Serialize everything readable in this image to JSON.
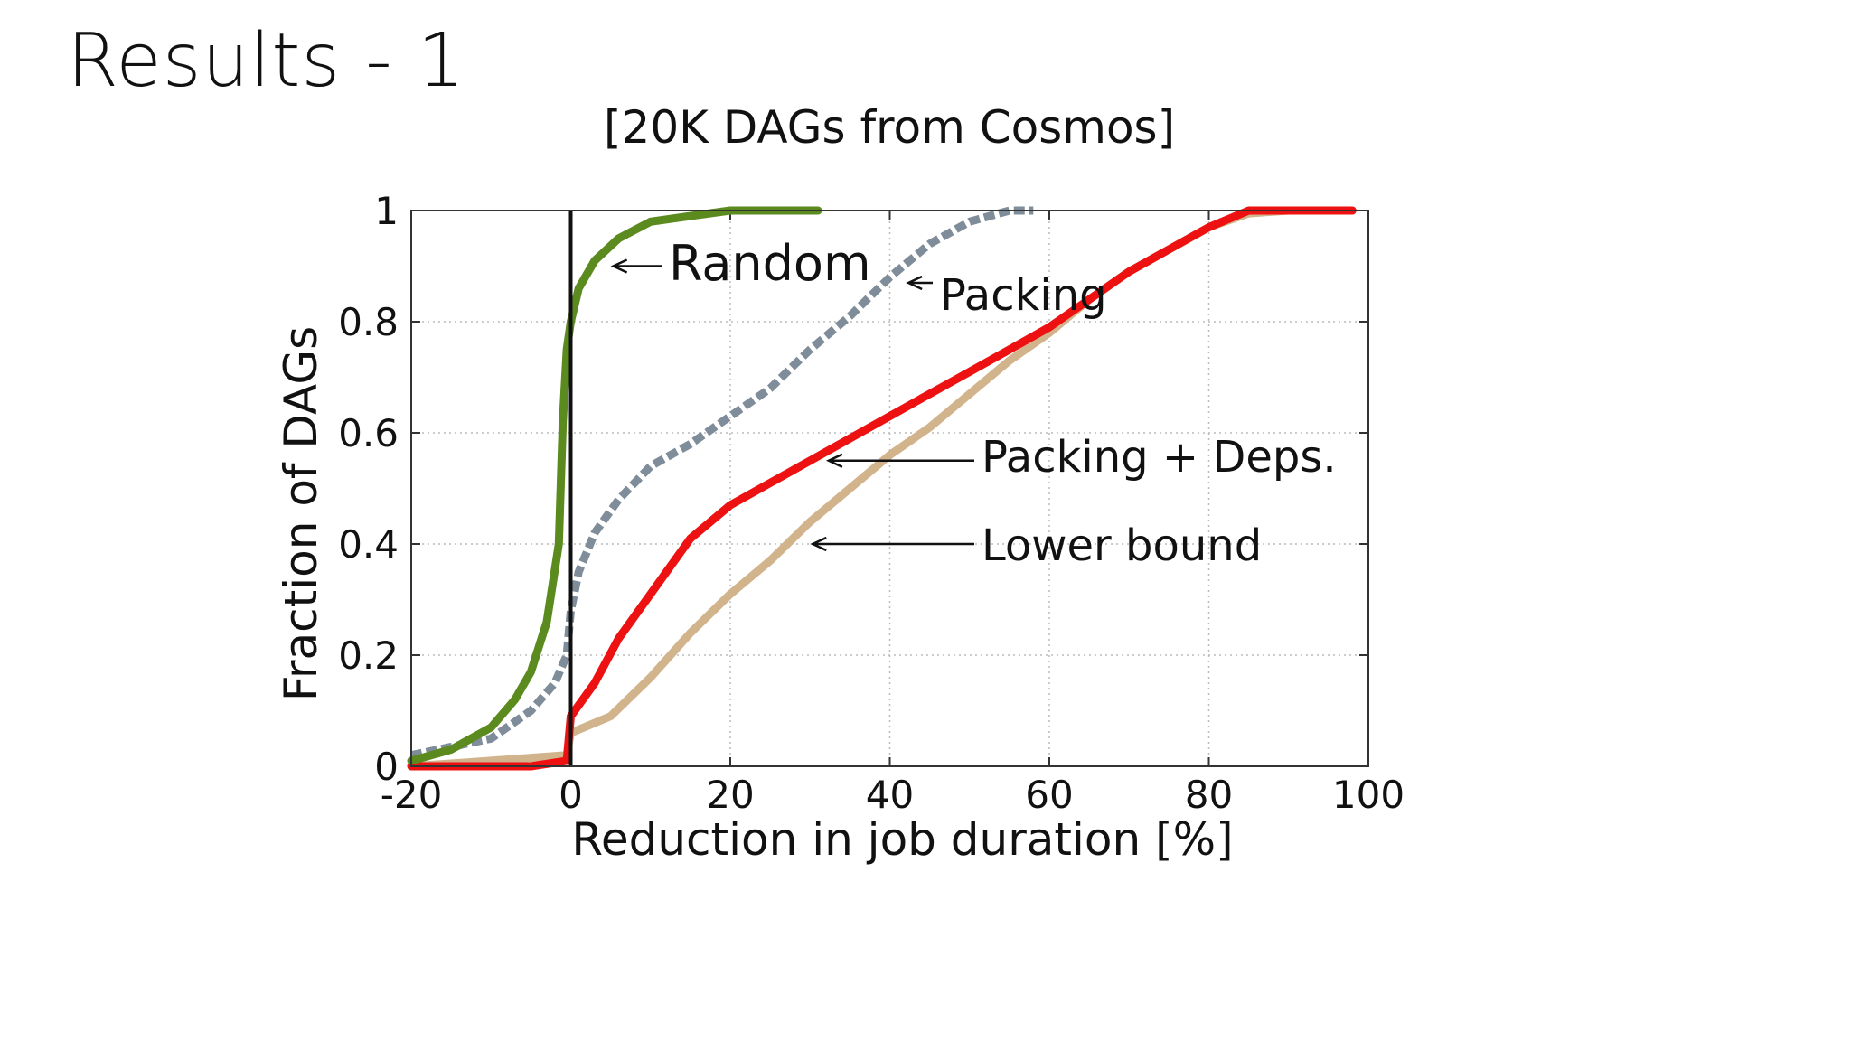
{
  "slide": {
    "title": "Results - 1",
    "subtitle": "[20K DAGs from Cosmos]"
  },
  "chart_data": {
    "type": "line",
    "xlabel": "Reduction in job duration [%]",
    "ylabel": "Fraction of DAGs",
    "xlim": [
      -20,
      100
    ],
    "ylim": [
      0,
      1
    ],
    "xticks": [
      "-20",
      "0",
      "20",
      "40",
      "60",
      "80",
      "100"
    ],
    "yticks": [
      "0",
      "0.2",
      "0.4",
      "0.6",
      "0.8",
      "1"
    ],
    "grid": true,
    "reference_line_x": 0,
    "series": [
      {
        "name": "Random",
        "color": "#5b8a1e",
        "dash": false,
        "points": [
          [
            -20,
            0.01
          ],
          [
            -15,
            0.03
          ],
          [
            -10,
            0.07
          ],
          [
            -7,
            0.12
          ],
          [
            -5,
            0.17
          ],
          [
            -3,
            0.26
          ],
          [
            -1.5,
            0.4
          ],
          [
            -1,
            0.62
          ],
          [
            -0.5,
            0.75
          ],
          [
            0,
            0.8
          ],
          [
            1,
            0.86
          ],
          [
            3,
            0.91
          ],
          [
            6,
            0.95
          ],
          [
            10,
            0.98
          ],
          [
            15,
            0.99
          ],
          [
            20,
            1.0
          ],
          [
            31,
            1.0
          ]
        ]
      },
      {
        "name": "Packing",
        "color": "#7f8c99",
        "dash": true,
        "points": [
          [
            -20,
            0.02
          ],
          [
            -10,
            0.05
          ],
          [
            -5,
            0.1
          ],
          [
            -2,
            0.15
          ],
          [
            -0.5,
            0.2
          ],
          [
            0,
            0.28
          ],
          [
            1,
            0.35
          ],
          [
            3,
            0.42
          ],
          [
            6,
            0.48
          ],
          [
            10,
            0.54
          ],
          [
            15,
            0.58
          ],
          [
            20,
            0.63
          ],
          [
            25,
            0.68
          ],
          [
            30,
            0.75
          ],
          [
            35,
            0.81
          ],
          [
            40,
            0.88
          ],
          [
            45,
            0.94
          ],
          [
            50,
            0.98
          ],
          [
            55,
            1.0
          ],
          [
            58,
            1.0
          ]
        ]
      },
      {
        "name": "Packing + Deps.",
        "color": "#ee1111",
        "dash": false,
        "points": [
          [
            -20,
            0.0
          ],
          [
            -5,
            0.0
          ],
          [
            -0.5,
            0.01
          ],
          [
            0,
            0.09
          ],
          [
            3,
            0.15
          ],
          [
            6,
            0.23
          ],
          [
            10,
            0.31
          ],
          [
            15,
            0.41
          ],
          [
            20,
            0.47
          ],
          [
            25,
            0.51
          ],
          [
            30,
            0.55
          ],
          [
            35,
            0.59
          ],
          [
            40,
            0.63
          ],
          [
            45,
            0.67
          ],
          [
            50,
            0.71
          ],
          [
            55,
            0.75
          ],
          [
            60,
            0.79
          ],
          [
            65,
            0.84
          ],
          [
            70,
            0.89
          ],
          [
            75,
            0.93
          ],
          [
            80,
            0.97
          ],
          [
            85,
            1.0
          ],
          [
            98,
            1.0
          ]
        ]
      },
      {
        "name": "Lower bound",
        "color": "#d2b48c",
        "dash": false,
        "points": [
          [
            -20,
            0.0
          ],
          [
            -10,
            0.01
          ],
          [
            -0.5,
            0.02
          ],
          [
            0,
            0.06
          ],
          [
            5,
            0.09
          ],
          [
            10,
            0.16
          ],
          [
            15,
            0.24
          ],
          [
            20,
            0.31
          ],
          [
            25,
            0.37
          ],
          [
            30,
            0.44
          ],
          [
            35,
            0.5
          ],
          [
            40,
            0.56
          ],
          [
            45,
            0.61
          ],
          [
            50,
            0.67
          ],
          [
            55,
            0.73
          ],
          [
            60,
            0.78
          ],
          [
            65,
            0.84
          ],
          [
            70,
            0.89
          ],
          [
            75,
            0.93
          ],
          [
            80,
            0.97
          ],
          [
            85,
            0.995
          ],
          [
            90,
            1.0
          ],
          [
            98,
            1.0
          ]
        ]
      }
    ],
    "annotations": [
      {
        "text": "Random",
        "series": "Random",
        "at": [
          5,
          0.9
        ]
      },
      {
        "text": "Packing",
        "series": "Packing",
        "at": [
          42,
          0.87
        ]
      },
      {
        "text": "Packing + Deps.",
        "series": "Packing + Deps.",
        "at": [
          32,
          0.55
        ]
      },
      {
        "text": "Lower bound",
        "series": "Lower bound",
        "at": [
          30,
          0.4
        ]
      }
    ]
  }
}
